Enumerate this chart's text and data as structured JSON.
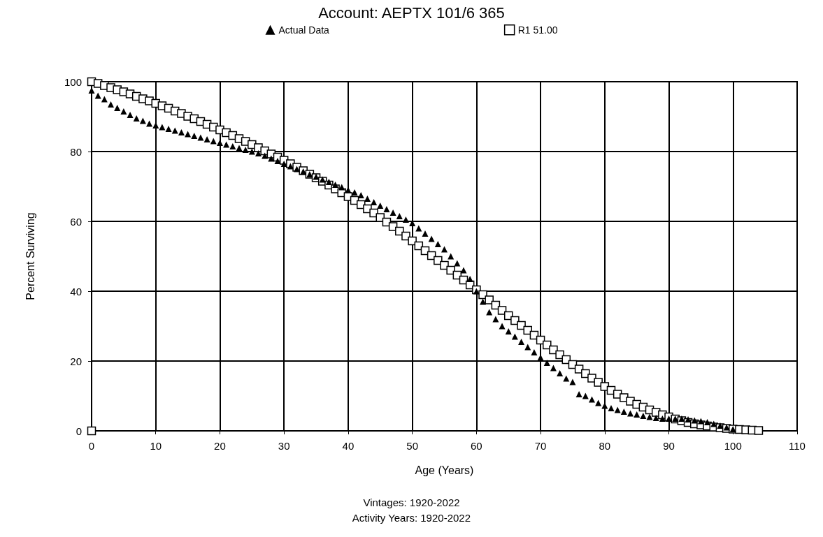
{
  "chart_data": {
    "type": "scatter",
    "title": "Account: AEPTX 101/6 365",
    "xlabel": "Age (Years)",
    "ylabel": "Percent Surviving",
    "annotations": [
      "Vintages: 1920-2022",
      "Activity Years: 1920-2022"
    ],
    "xlim": [
      0,
      110
    ],
    "xticks": [
      0,
      10,
      20,
      30,
      40,
      50,
      60,
      70,
      80,
      90,
      100,
      110
    ],
    "ylim": [
      0,
      100
    ],
    "yticks": [
      0,
      20,
      40,
      60,
      80,
      100
    ],
    "grid": true,
    "legend": "top",
    "series": [
      {
        "name": "Actual Data",
        "color": "#000000",
        "marker": "triangle",
        "x": [
          0,
          1,
          2,
          3,
          4,
          5,
          6,
          7,
          8,
          9,
          10,
          11,
          12,
          13,
          14,
          15,
          16,
          17,
          18,
          19,
          20,
          21,
          22,
          23,
          24,
          25,
          26,
          27,
          28,
          29,
          30,
          31,
          32,
          33,
          34,
          35,
          36,
          37,
          38,
          39,
          40,
          41,
          42,
          43,
          44,
          45,
          46,
          47,
          48,
          49,
          50,
          51,
          52,
          53,
          54,
          55,
          56,
          57,
          58,
          59,
          60,
          61,
          62,
          63,
          64,
          65,
          66,
          67,
          68,
          69,
          70,
          71,
          72,
          73,
          74,
          75,
          76,
          77,
          78,
          79,
          80,
          81,
          82,
          83,
          84,
          85,
          86,
          87,
          88,
          89,
          90,
          91,
          92,
          93,
          94,
          95,
          96,
          97,
          98,
          99,
          100
        ],
        "values": [
          97.5,
          96,
          95,
          93.5,
          92.5,
          91.5,
          90.5,
          89.5,
          88.8,
          88,
          87.5,
          87,
          86.5,
          86,
          85.5,
          85,
          84.5,
          84,
          83.5,
          83,
          82.5,
          82,
          81.5,
          81,
          80.5,
          80,
          79.5,
          78.8,
          78,
          77.3,
          76.5,
          75.8,
          75,
          74.3,
          73.5,
          72.8,
          72,
          71.3,
          70.5,
          69.8,
          69,
          68.3,
          67.5,
          66.5,
          65.5,
          64.5,
          63.5,
          62.5,
          61.5,
          60.5,
          59.5,
          58,
          56.5,
          55,
          53.5,
          52,
          50,
          48,
          46,
          43.5,
          40,
          37,
          34,
          32,
          30,
          28.5,
          27,
          25.5,
          24,
          22.5,
          21,
          19.5,
          18,
          16.5,
          15,
          14,
          10.5,
          10,
          9,
          8,
          7.2,
          6.5,
          6,
          5.5,
          5,
          4.7,
          4.3,
          4,
          3.7,
          3.5,
          3.5,
          3.5,
          3.5,
          3.3,
          3,
          2.8,
          2.5,
          2,
          1.5,
          1,
          0.5
        ]
      },
      {
        "name": "R1 51.00",
        "color": "#000000",
        "marker": "square",
        "x": [
          0,
          0,
          1,
          2,
          3,
          4,
          5,
          6,
          7,
          8,
          9,
          10,
          11,
          12,
          13,
          14,
          15,
          16,
          17,
          18,
          19,
          20,
          21,
          22,
          23,
          24,
          25,
          26,
          27,
          28,
          29,
          30,
          31,
          32,
          33,
          34,
          35,
          36,
          37,
          38,
          39,
          40,
          41,
          42,
          43,
          44,
          45,
          46,
          47,
          48,
          49,
          50,
          51,
          52,
          53,
          54,
          55,
          56,
          57,
          58,
          59,
          60,
          61,
          62,
          63,
          64,
          65,
          66,
          67,
          68,
          69,
          70,
          71,
          72,
          73,
          74,
          75,
          76,
          77,
          78,
          79,
          80,
          81,
          82,
          83,
          84,
          85,
          86,
          87,
          88,
          89,
          90,
          91,
          92,
          93,
          94,
          95,
          96,
          97,
          98,
          99,
          100,
          101,
          102,
          103,
          104
        ],
        "values": [
          0,
          100,
          99.5,
          98.9,
          98.3,
          97.7,
          97.1,
          96.5,
          95.8,
          95.1,
          94.5,
          93.8,
          93.1,
          92.4,
          91.6,
          90.9,
          90.1,
          89.4,
          88.6,
          87.8,
          87,
          86.2,
          85.4,
          84.6,
          83.7,
          82.9,
          82,
          81.1,
          80.2,
          79.3,
          78.4,
          77.5,
          76.5,
          75.5,
          74.5,
          73.5,
          72.5,
          71.5,
          70.4,
          69.3,
          68.2,
          67.1,
          66,
          64.8,
          63.6,
          62.4,
          61.1,
          59.8,
          58.5,
          57.2,
          55.8,
          54.4,
          53,
          51.6,
          50.2,
          48.8,
          47.4,
          46,
          44.6,
          43.2,
          41.8,
          40.4,
          39,
          37.5,
          36,
          34.5,
          33,
          31.6,
          30.2,
          28.8,
          27.4,
          26,
          24.6,
          23.2,
          21.8,
          20.4,
          19,
          17.7,
          16.4,
          15.1,
          13.9,
          12.7,
          11.6,
          10.5,
          9.5,
          8.5,
          7.6,
          6.8,
          6,
          5.3,
          4.6,
          4,
          3.4,
          2.9,
          2.4,
          2,
          1.7,
          1.4,
          1.1,
          0.9,
          0.7,
          0.5,
          0.4,
          0.3,
          0.2,
          0.1
        ]
      }
    ]
  }
}
